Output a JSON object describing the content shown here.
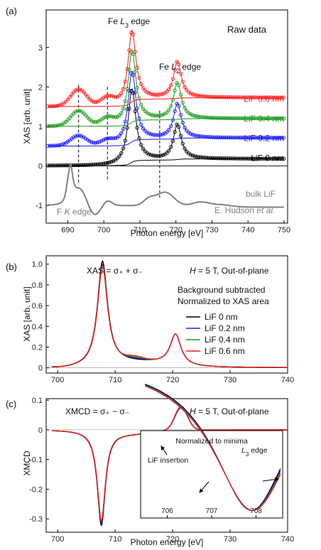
{
  "chart_data": [
    {
      "panel_label": "(a)",
      "type": "line",
      "xlabel": "Photon energy [eV]",
      "ylabel": "XAS [arb. unit]",
      "xlim": [
        684,
        751
      ],
      "ylim": [
        -1.45,
        3.95
      ],
      "xticks": [
        690,
        700,
        710,
        720,
        730,
        740,
        750
      ],
      "yticks": [
        -1,
        0,
        1,
        2,
        3
      ],
      "annotations": {
        "raw": "Raw data",
        "l3_prefix": "Fe ",
        "l3_sym": "L",
        "l3_sub": "3",
        "l3_suffix": " edge",
        "l2_prefix": "Fe ",
        "l2_sym": "L",
        "l2_sub": "2",
        "l2_suffix": " edge",
        "fk": "F ",
        "fk_sym": "K",
        "fk_suffix": " edge",
        "bulk": "bulk LiF",
        "hudson": "E. Hudson ",
        "hudson_etal": "et al."
      },
      "dashed_lines_eV": [
        693,
        701,
        715.5
      ],
      "series": [
        {
          "name": "LiF 0 nm",
          "color": "#000000",
          "offset": 0
        },
        {
          "name": "LiF 0.2 nm",
          "color": "#1a1aff",
          "offset": 0.5
        },
        {
          "name": "LiF 0.4 nm",
          "color": "#1a9a1a",
          "offset": 1.0
        },
        {
          "name": "LiF 0.6 nm",
          "color": "#ff1a1a",
          "offset": 1.5
        }
      ],
      "bulk_color": "#808080"
    },
    {
      "panel_label": "(b)",
      "type": "line",
      "ylabel": "XAS [arb. unit]",
      "xlim": [
        698,
        740
      ],
      "ylim": [
        -0.05,
        1.08
      ],
      "xticks": [
        700,
        710,
        720,
        730,
        740
      ],
      "yticks": [
        0,
        0.2,
        0.4,
        0.6,
        0.8,
        1.0
      ],
      "ytick_labels": [
        "0",
        "0.2",
        "0.4",
        "0.6",
        "0.8",
        "1.0"
      ],
      "formula": "XAS = σ₊ + σ₋",
      "field_h": "H",
      "field": " = 5 T, Out-of-plane",
      "note1": "Background subtracted",
      "note2": "Normalized to XAS area",
      "legend": [
        {
          "name": "LiF 0 nm",
          "color": "#000000"
        },
        {
          "name": "LiF 0.2 nm",
          "color": "#1a1aff"
        },
        {
          "name": "LiF 0.4 nm",
          "color": "#1a9a1a"
        },
        {
          "name": "LiF 0.6 nm",
          "color": "#ff1a1a"
        }
      ],
      "peaks": {
        "L3": [
          707.8,
          1.0
        ],
        "L2": [
          720.5,
          0.33
        ]
      }
    },
    {
      "panel_label": "(c)",
      "type": "line",
      "xlabel": "Photon energy [eV]",
      "ylabel": "XMCD",
      "xlim": [
        698,
        740
      ],
      "ylim": [
        -0.345,
        0.105
      ],
      "xticks": [
        700,
        710,
        720,
        730,
        740
      ],
      "yticks": [
        -0.3,
        -0.2,
        -0.1,
        0,
        0.1
      ],
      "ytick_labels": [
        "-0.3",
        "-0.2",
        "-0.1",
        "0",
        "0.1"
      ],
      "formula": "XMCD = σ₊ − σ₋",
      "field_h": "H",
      "field": " = 5 T, Out-of-plane",
      "peaks": {
        "L3": [
          707.6,
          -0.32
        ],
        "L2": [
          721.5,
          0.08
        ]
      },
      "inset": {
        "xlim": [
          705.4,
          708.6
        ],
        "xticks": [
          706,
          707,
          708
        ],
        "title1": "Normalized to minima",
        "title2_sym": "L",
        "title2_sub": "3",
        "title2_suffix": " edge",
        "arrow_label": "LiF insertion"
      }
    }
  ]
}
